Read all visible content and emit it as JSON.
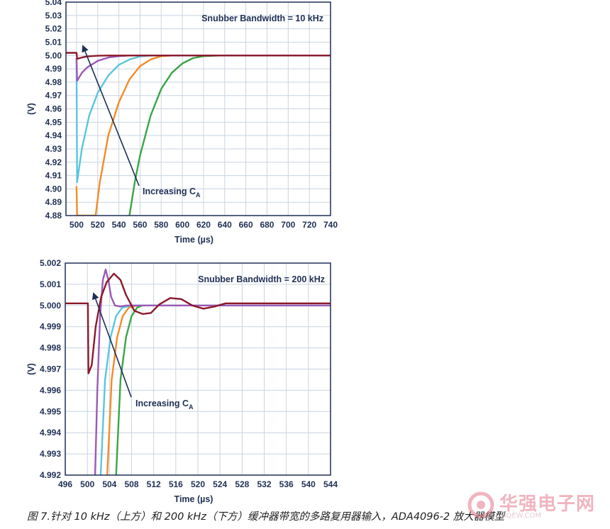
{
  "chart_data": [
    {
      "type": "line",
      "ylabel": "(V)",
      "xlabel": "Time (µs)",
      "annotation": "Snubber Bandwidth = 10 kHz",
      "arrow_label": "Increasing C",
      "arrow_label_sub": "A",
      "xlim": [
        490,
        740
      ],
      "ylim": [
        4.88,
        5.04
      ],
      "x_ticks": [
        500,
        520,
        540,
        560,
        580,
        600,
        620,
        640,
        660,
        680,
        700,
        720,
        740
      ],
      "y_ticks": [
        4.88,
        4.89,
        4.9,
        4.91,
        4.92,
        4.93,
        4.94,
        4.95,
        4.96,
        4.97,
        4.98,
        4.99,
        5.0,
        5.01,
        5.02,
        5.03,
        5.04
      ],
      "y_decimals": 2,
      "grid": true,
      "series": [
        {
          "color": "#3aa547",
          "points": [
            [
              550,
              4.88
            ],
            [
              555,
              4.905
            ],
            [
              560,
              4.925
            ],
            [
              570,
              4.955
            ],
            [
              580,
              4.975
            ],
            [
              590,
              4.987
            ],
            [
              600,
              4.994
            ],
            [
              610,
              4.998
            ],
            [
              620,
              4.9995
            ],
            [
              635,
              5.0
            ],
            [
              740,
              5.0
            ]
          ]
        },
        {
          "color": "#f28c28",
          "points": [
            [
              500,
              4.902
            ],
            [
              500.5,
              4.88
            ],
            [
              518,
              4.88
            ],
            [
              522,
              4.905
            ],
            [
              530,
              4.94
            ],
            [
              540,
              4.965
            ],
            [
              550,
              4.982
            ],
            [
              560,
              4.992
            ],
            [
              570,
              4.997
            ],
            [
              580,
              4.9995
            ],
            [
              590,
              5.0
            ],
            [
              740,
              5.0
            ]
          ]
        },
        {
          "color": "#5bc5de",
          "points": [
            [
              500,
              4.998
            ],
            [
              500.5,
              4.905
            ],
            [
              505,
              4.93
            ],
            [
              512,
              4.955
            ],
            [
              520,
              4.972
            ],
            [
              530,
              4.985
            ],
            [
              540,
              4.993
            ],
            [
              550,
              4.997
            ],
            [
              560,
              4.9993
            ],
            [
              570,
              5.0
            ],
            [
              740,
              5.0
            ]
          ]
        },
        {
          "color": "#9b59b6",
          "points": [
            [
              500,
              4.998
            ],
            [
              500.5,
              4.981
            ],
            [
              505,
              4.987
            ],
            [
              510,
              4.991
            ],
            [
              520,
              4.996
            ],
            [
              530,
              4.9985
            ],
            [
              540,
              4.9995
            ],
            [
              550,
              5.0
            ],
            [
              740,
              5.0
            ]
          ]
        },
        {
          "color": "#8b1a2b",
          "points": [
            [
              490,
              5.002
            ],
            [
              500,
              5.002
            ],
            [
              500.5,
              4.9975
            ],
            [
              505,
              4.9985
            ],
            [
              510,
              4.9993
            ],
            [
              520,
              4.9998
            ],
            [
              530,
              5.0
            ],
            [
              740,
              5.0
            ]
          ]
        }
      ]
    },
    {
      "type": "line",
      "ylabel": "(V)",
      "xlabel": "Time (µs)",
      "annotation": "Snubber Bandwidth = 200 kHz",
      "arrow_label": "Increasing C",
      "arrow_label_sub": "A",
      "xlim": [
        496,
        544
      ],
      "ylim": [
        4.992,
        5.002
      ],
      "x_ticks": [
        496,
        500,
        504,
        508,
        512,
        516,
        520,
        524,
        528,
        532,
        536,
        540,
        544
      ],
      "y_ticks": [
        4.992,
        4.993,
        4.994,
        4.995,
        4.996,
        4.997,
        4.998,
        4.999,
        5.0,
        5.001,
        5.002
      ],
      "y_decimals": 3,
      "grid": true,
      "series": [
        {
          "color": "#3aa547",
          "points": [
            [
              505.2,
              4.992
            ],
            [
              506,
              4.9965
            ],
            [
              507,
              4.9985
            ],
            [
              508,
              4.9995
            ],
            [
              509,
              4.9999
            ],
            [
              510,
              5.0
            ],
            [
              544,
              5.0
            ]
          ]
        },
        {
          "color": "#f28c28",
          "points": [
            [
              503.6,
              4.992
            ],
            [
              504.4,
              4.9965
            ],
            [
              505.4,
              4.9985
            ],
            [
              506.4,
              4.9995
            ],
            [
              507.5,
              4.9999
            ],
            [
              509,
              5.0
            ],
            [
              544,
              5.0
            ]
          ]
        },
        {
          "color": "#5bc5de",
          "points": [
            [
              502.4,
              4.992
            ],
            [
              503.2,
              4.9965
            ],
            [
              504.2,
              4.9985
            ],
            [
              505.2,
              4.9995
            ],
            [
              506.3,
              4.9999
            ],
            [
              508,
              5.0
            ],
            [
              544,
              5.0
            ]
          ]
        },
        {
          "color": "#9b59b6",
          "points": [
            [
              501.4,
              4.992
            ],
            [
              501.8,
              4.996
            ],
            [
              502.3,
              4.9995
            ],
            [
              502.8,
              5.0012
            ],
            [
              503.3,
              5.0017
            ],
            [
              503.8,
              5.0012
            ],
            [
              504.3,
              5.0004
            ],
            [
              505,
              5.0
            ],
            [
              506,
              4.99995
            ],
            [
              507,
              5.0
            ],
            [
              544,
              5.0
            ]
          ]
        },
        {
          "color": "#8b1a2b",
          "points": [
            [
              496,
              5.0001
            ],
            [
              500.1,
              5.0001
            ],
            [
              500.2,
              4.9968
            ],
            [
              500.8,
              4.9972
            ],
            [
              501.5,
              4.999
            ],
            [
              502.5,
              5.0004
            ],
            [
              503.5,
              5.0011
            ],
            [
              504.8,
              5.0015
            ],
            [
              506,
              5.0012
            ],
            [
              507,
              5.0005
            ],
            [
              508.5,
              4.99975
            ],
            [
              510,
              4.9996
            ],
            [
              511.5,
              4.99965
            ],
            [
              513,
              5.00005
            ],
            [
              515,
              5.00035
            ],
            [
              517,
              5.0003
            ],
            [
              519,
              5.0
            ],
            [
              521,
              4.99985
            ],
            [
              523,
              4.99995
            ],
            [
              525,
              5.0001
            ],
            [
              527,
              5.0001
            ],
            [
              529,
              5.0001
            ],
            [
              544,
              5.0001
            ]
          ]
        }
      ]
    }
  ],
  "caption": "图 7.针对 10 kHz（上方）和 200 kHz（下方）缓冲器带宽的多路复用器输入，ADA4096-2 放大器模型",
  "watermark": {
    "text": "华强电子网",
    "url": "HQEW.COM"
  }
}
